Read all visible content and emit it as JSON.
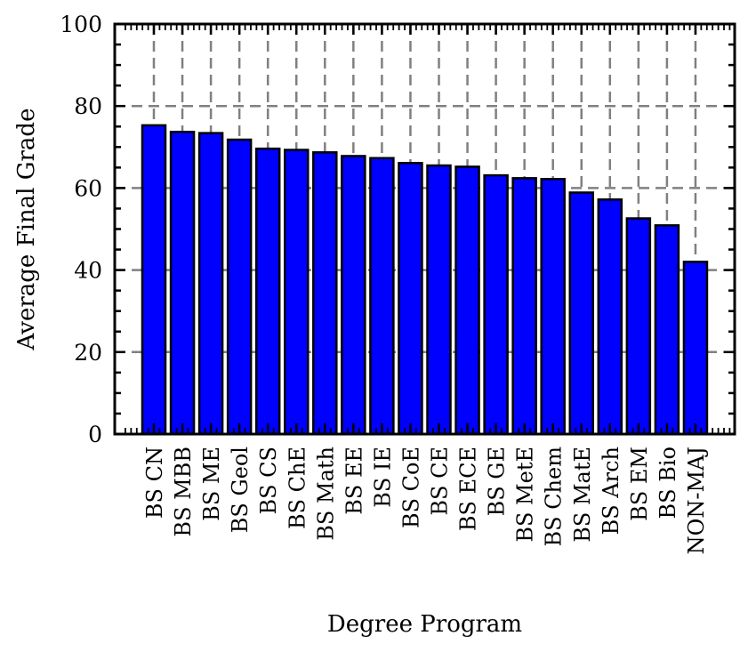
{
  "chart_data": {
    "type": "bar",
    "title": "",
    "xlabel": "Degree Program",
    "ylabel": "Average Final Grade",
    "ylim": [
      0,
      100
    ],
    "yticks": [
      "0",
      "20",
      "40",
      "60",
      "80",
      "100"
    ],
    "grid": true,
    "categories": [
      "BS CN",
      "BS MBB",
      "BS ME",
      "BS Geol",
      "BS CS",
      "BS ChE",
      "BS Math",
      "BS EE",
      "BS IE",
      "BS CoE",
      "BS CE",
      "BS ECE",
      "BS GE",
      "BS MetE",
      "BS Chem",
      "BS MatE",
      "BS Arch",
      "BS EM",
      "BS Bio",
      "NON-MAJ"
    ],
    "values": [
      75.3,
      73.7,
      73.4,
      71.8,
      69.6,
      69.3,
      68.7,
      67.8,
      67.3,
      66.1,
      65.5,
      65.2,
      63.1,
      62.4,
      62.2,
      58.9,
      57.2,
      52.6,
      50.9,
      42.0
    ],
    "colors": {
      "bar_fill": "#0000ff",
      "bar_edge": "#000000",
      "grid": "#808080",
      "axis": "#000000"
    }
  }
}
